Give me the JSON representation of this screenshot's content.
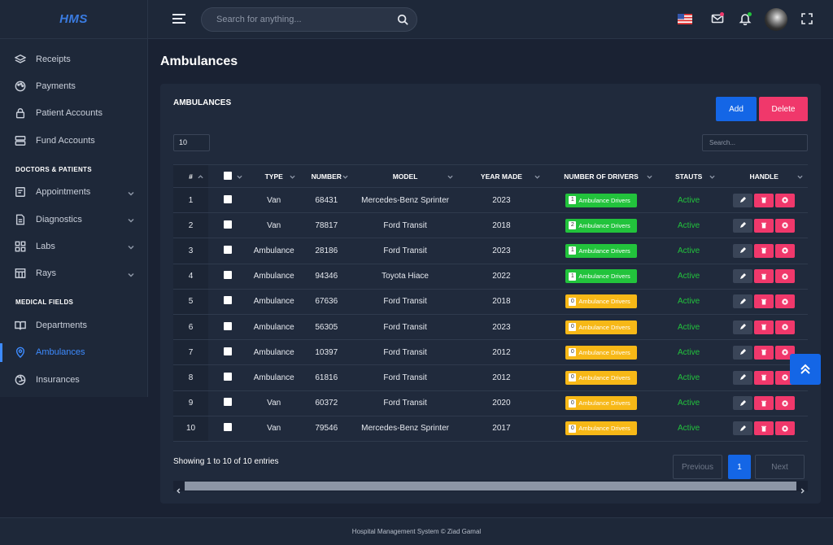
{
  "app": {
    "logo": "HMS"
  },
  "sidebar": {
    "items_top": [
      {
        "label": "Receipts",
        "icon": "layers-icon"
      },
      {
        "label": "Payments",
        "icon": "palette-icon"
      },
      {
        "label": "Patient Accounts",
        "icon": "lock-icon"
      },
      {
        "label": "Fund Accounts",
        "icon": "server-icon"
      }
    ],
    "section1": "DOCTORS & PATIENTS",
    "items_mid": [
      {
        "label": "Appointments",
        "icon": "calendar-icon"
      },
      {
        "label": "Diagnostics",
        "icon": "file-icon"
      },
      {
        "label": "Labs",
        "icon": "grid-icon"
      },
      {
        "label": "Rays",
        "icon": "table-icon"
      }
    ],
    "section2": "MEDICAL FIELDS",
    "items_bottom": [
      {
        "label": "Departments",
        "icon": "book-icon"
      },
      {
        "label": "Ambulances",
        "icon": "map-pin-icon"
      },
      {
        "label": "Insurances",
        "icon": "aperture-icon"
      }
    ]
  },
  "topbar": {
    "search_placeholder": "Search for anything..."
  },
  "page": {
    "title": "Ambulances"
  },
  "card": {
    "title": "AMBULANCES",
    "add_label": "Add",
    "delete_label": "Delete",
    "length_value": "10",
    "search_placeholder": "Search..."
  },
  "table": {
    "headers": [
      "#",
      "",
      "TYPE",
      "NUMBER",
      "MODEL",
      "YEAR MADE",
      "NUMBER OF DRIVERS",
      "STAUTS",
      "HANDLE"
    ],
    "rows": [
      {
        "idx": "1",
        "type": "Van",
        "number": "68431",
        "model": "Mercedes-Benz Sprinter",
        "year": "2023",
        "drivers": "1",
        "drivers_label": "Ambulance Drivers",
        "badge": "green",
        "status": "Active"
      },
      {
        "idx": "2",
        "type": "Van",
        "number": "78817",
        "model": "Ford Transit",
        "year": "2018",
        "drivers": "2",
        "drivers_label": "Ambulance Drivers",
        "badge": "green",
        "status": "Active"
      },
      {
        "idx": "3",
        "type": "Ambulance",
        "number": "28186",
        "model": "Ford Transit",
        "year": "2023",
        "drivers": "1",
        "drivers_label": "Ambulance Drivers",
        "badge": "green",
        "status": "Active"
      },
      {
        "idx": "4",
        "type": "Ambulance",
        "number": "94346",
        "model": "Toyota Hiace",
        "year": "2022",
        "drivers": "1",
        "drivers_label": "Ambulance Drivers",
        "badge": "green",
        "status": "Active"
      },
      {
        "idx": "5",
        "type": "Ambulance",
        "number": "67636",
        "model": "Ford Transit",
        "year": "2018",
        "drivers": "0",
        "drivers_label": "Ambulance Drivers",
        "badge": "yellow",
        "status": "Active"
      },
      {
        "idx": "6",
        "type": "Ambulance",
        "number": "56305",
        "model": "Ford Transit",
        "year": "2023",
        "drivers": "0",
        "drivers_label": "Ambulance Drivers",
        "badge": "yellow",
        "status": "Active"
      },
      {
        "idx": "7",
        "type": "Ambulance",
        "number": "10397",
        "model": "Ford Transit",
        "year": "2012",
        "drivers": "0",
        "drivers_label": "Ambulance Drivers",
        "badge": "yellow",
        "status": "Active"
      },
      {
        "idx": "8",
        "type": "Ambulance",
        "number": "61816",
        "model": "Ford Transit",
        "year": "2012",
        "drivers": "0",
        "drivers_label": "Ambulance Drivers",
        "badge": "yellow",
        "status": "Active"
      },
      {
        "idx": "9",
        "type": "Van",
        "number": "60372",
        "model": "Ford Transit",
        "year": "2020",
        "drivers": "0",
        "drivers_label": "Ambulance Drivers",
        "badge": "yellow",
        "status": "Active"
      },
      {
        "idx": "10",
        "type": "Van",
        "number": "79546",
        "model": "Mercedes-Benz Sprinter",
        "year": "2017",
        "drivers": "0",
        "drivers_label": "Ambulance Drivers",
        "badge": "yellow",
        "status": "Active"
      }
    ]
  },
  "pagination": {
    "info": "Showing 1 to 10 of 10 entries",
    "prev": "Previous",
    "current": "1",
    "next": "Next"
  },
  "footer": {
    "text": "Hospital Management System © Ziad Gamal"
  },
  "colors": {
    "accent": "#1466e6",
    "danger": "#f0386b",
    "success": "#22c33c",
    "warning": "#f7b817"
  }
}
